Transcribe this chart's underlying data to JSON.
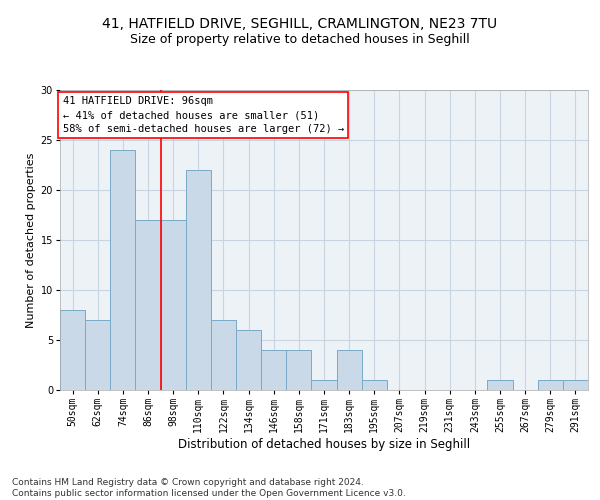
{
  "title": "41, HATFIELD DRIVE, SEGHILL, CRAMLINGTON, NE23 7TU",
  "subtitle": "Size of property relative to detached houses in Seghill",
  "xlabel": "Distribution of detached houses by size in Seghill",
  "ylabel": "Number of detached properties",
  "categories": [
    "50sqm",
    "62sqm",
    "74sqm",
    "86sqm",
    "98sqm",
    "110sqm",
    "122sqm",
    "134sqm",
    "146sqm",
    "158sqm",
    "171sqm",
    "183sqm",
    "195sqm",
    "207sqm",
    "219sqm",
    "231sqm",
    "243sqm",
    "255sqm",
    "267sqm",
    "279sqm",
    "291sqm"
  ],
  "values": [
    8,
    7,
    24,
    17,
    17,
    22,
    7,
    6,
    4,
    4,
    1,
    4,
    1,
    0,
    0,
    0,
    0,
    1,
    0,
    1,
    1
  ],
  "bar_color": "#c9d9e8",
  "bar_edge_color": "#7aaac8",
  "vline_color": "red",
  "vline_pos": 3.5,
  "annotation_box_text": "41 HATFIELD DRIVE: 96sqm\n← 41% of detached houses are smaller (51)\n58% of semi-detached houses are larger (72) →",
  "annotation_box_color": "red",
  "ylim": [
    0,
    30
  ],
  "yticks": [
    0,
    5,
    10,
    15,
    20,
    25,
    30
  ],
  "grid_color": "#c8d4e0",
  "background_color": "#edf2f7",
  "footnote": "Contains HM Land Registry data © Crown copyright and database right 2024.\nContains public sector information licensed under the Open Government Licence v3.0.",
  "title_fontsize": 10,
  "subtitle_fontsize": 9,
  "xlabel_fontsize": 8.5,
  "ylabel_fontsize": 8,
  "tick_fontsize": 7,
  "annot_fontsize": 7.5,
  "footnote_fontsize": 6.5
}
